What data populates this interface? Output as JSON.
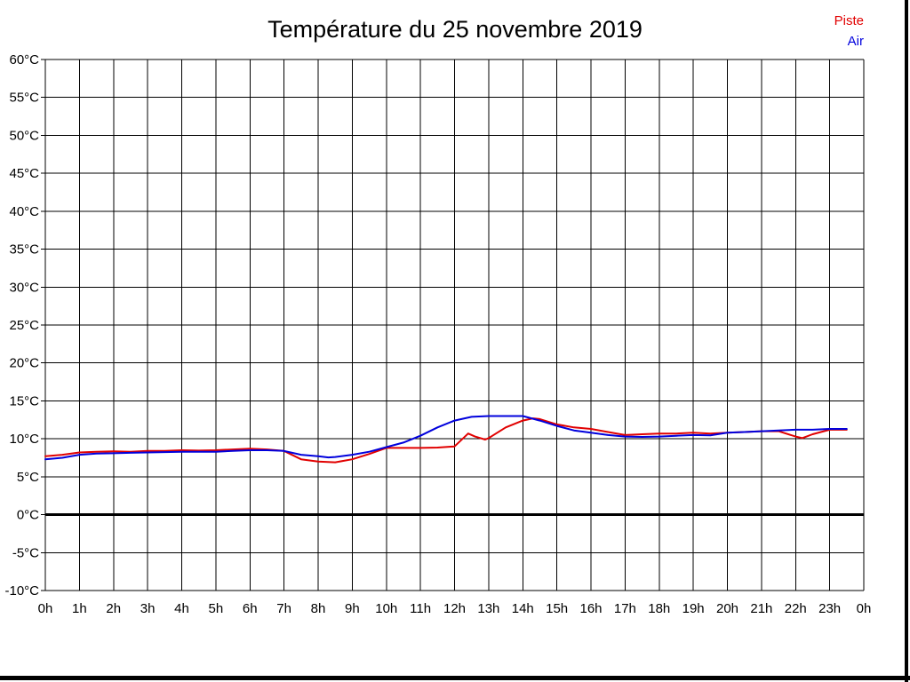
{
  "header": {
    "title": "Température du 25 novembre 2019"
  },
  "legend": {
    "items": [
      {
        "label": "Piste",
        "color": "#e10000"
      },
      {
        "label": "Air",
        "color": "#0000dd"
      }
    ]
  },
  "frame": {
    "border_color": "#000000"
  },
  "chart_data": {
    "type": "line",
    "title": "Température du 25 novembre 2019",
    "xlabel": "",
    "ylabel": "",
    "xlim": [
      0,
      24
    ],
    "ylim": [
      -10,
      60
    ],
    "grid": true,
    "grid_color": "#000000",
    "zero_line_bold": true,
    "legend_position": "top-right",
    "x_ticks": [
      [
        0,
        "0h"
      ],
      [
        1,
        "1h"
      ],
      [
        2,
        "2h"
      ],
      [
        3,
        "3h"
      ],
      [
        4,
        "4h"
      ],
      [
        5,
        "5h"
      ],
      [
        6,
        "6h"
      ],
      [
        7,
        "7h"
      ],
      [
        8,
        "8h"
      ],
      [
        9,
        "9h"
      ],
      [
        10,
        "10h"
      ],
      [
        11,
        "11h"
      ],
      [
        12,
        "12h"
      ],
      [
        13,
        "13h"
      ],
      [
        14,
        "14h"
      ],
      [
        15,
        "15h"
      ],
      [
        16,
        "16h"
      ],
      [
        17,
        "17h"
      ],
      [
        18,
        "18h"
      ],
      [
        19,
        "19h"
      ],
      [
        20,
        "20h"
      ],
      [
        21,
        "21h"
      ],
      [
        22,
        "22h"
      ],
      [
        23,
        "23h"
      ],
      [
        24,
        "0h"
      ]
    ],
    "y_ticks": [
      [
        -10,
        "-10°C"
      ],
      [
        -5,
        "-5°C"
      ],
      [
        0,
        "0°C"
      ],
      [
        5,
        "5°C"
      ],
      [
        10,
        "10°C"
      ],
      [
        15,
        "15°C"
      ],
      [
        20,
        "20°C"
      ],
      [
        25,
        "25°C"
      ],
      [
        30,
        "30°C"
      ],
      [
        35,
        "35°C"
      ],
      [
        40,
        "40°C"
      ],
      [
        45,
        "45°C"
      ],
      [
        50,
        "50°C"
      ],
      [
        55,
        "55°C"
      ],
      [
        60,
        "60°C"
      ]
    ],
    "series": [
      {
        "name": "Piste",
        "color": "#e10000",
        "points": [
          [
            0,
            7.7
          ],
          [
            0.5,
            7.9
          ],
          [
            1,
            8.2
          ],
          [
            1.5,
            8.3
          ],
          [
            2,
            8.35
          ],
          [
            2.5,
            8.3
          ],
          [
            3,
            8.4
          ],
          [
            3.5,
            8.4
          ],
          [
            4,
            8.5
          ],
          [
            4.5,
            8.45
          ],
          [
            5,
            8.5
          ],
          [
            5.5,
            8.6
          ],
          [
            6,
            8.7
          ],
          [
            6.5,
            8.6
          ],
          [
            7,
            8.4
          ],
          [
            7.5,
            7.3
          ],
          [
            8,
            7
          ],
          [
            8.5,
            6.9
          ],
          [
            9,
            7.3
          ],
          [
            9.5,
            8
          ],
          [
            10,
            8.8
          ],
          [
            10.5,
            8.8
          ],
          [
            11,
            8.8
          ],
          [
            11.5,
            8.85
          ],
          [
            12,
            9
          ],
          [
            12.4,
            10.7
          ],
          [
            12.6,
            10.3
          ],
          [
            12.9,
            9.9
          ],
          [
            13,
            10.1
          ],
          [
            13.5,
            11.5
          ],
          [
            14,
            12.4
          ],
          [
            14.3,
            12.7
          ],
          [
            14.5,
            12.6
          ],
          [
            15,
            11.9
          ],
          [
            15.5,
            11.5
          ],
          [
            16,
            11.3
          ],
          [
            16.5,
            10.9
          ],
          [
            17,
            10.5
          ],
          [
            17.5,
            10.6
          ],
          [
            18,
            10.7
          ],
          [
            18.5,
            10.7
          ],
          [
            19,
            10.8
          ],
          [
            19.5,
            10.7
          ],
          [
            20,
            10.8
          ],
          [
            20.5,
            10.9
          ],
          [
            21,
            11
          ],
          [
            21.5,
            11
          ],
          [
            22,
            10.3
          ],
          [
            22.2,
            10.1
          ],
          [
            22.5,
            10.6
          ],
          [
            23,
            11.2
          ],
          [
            23.5,
            11.2
          ]
        ]
      },
      {
        "name": "Air",
        "color": "#0000dd",
        "points": [
          [
            0,
            7.3
          ],
          [
            0.5,
            7.5
          ],
          [
            1,
            7.9
          ],
          [
            1.5,
            8.05
          ],
          [
            2,
            8.1
          ],
          [
            2.5,
            8.15
          ],
          [
            3,
            8.2
          ],
          [
            3.5,
            8.25
          ],
          [
            4,
            8.3
          ],
          [
            4.5,
            8.3
          ],
          [
            5,
            8.3
          ],
          [
            5.5,
            8.4
          ],
          [
            6,
            8.5
          ],
          [
            6.5,
            8.5
          ],
          [
            7,
            8.4
          ],
          [
            7.5,
            7.9
          ],
          [
            8,
            7.7
          ],
          [
            8.3,
            7.55
          ],
          [
            8.5,
            7.6
          ],
          [
            9,
            7.9
          ],
          [
            9.5,
            8.3
          ],
          [
            10,
            8.9
          ],
          [
            10.5,
            9.5
          ],
          [
            11,
            10.4
          ],
          [
            11.5,
            11.5
          ],
          [
            12,
            12.4
          ],
          [
            12.5,
            12.9
          ],
          [
            13,
            13
          ],
          [
            13.5,
            13
          ],
          [
            14,
            13
          ],
          [
            14.5,
            12.4
          ],
          [
            15,
            11.7
          ],
          [
            15.5,
            11.1
          ],
          [
            16,
            10.8
          ],
          [
            16.5,
            10.5
          ],
          [
            17,
            10.3
          ],
          [
            17.5,
            10.25
          ],
          [
            18,
            10.3
          ],
          [
            18.5,
            10.4
          ],
          [
            19,
            10.5
          ],
          [
            19.5,
            10.45
          ],
          [
            20,
            10.8
          ],
          [
            20.5,
            10.9
          ],
          [
            21,
            11
          ],
          [
            21.5,
            11.1
          ],
          [
            22,
            11.2
          ],
          [
            22.5,
            11.2
          ],
          [
            23,
            11.3
          ],
          [
            23.5,
            11.3
          ]
        ]
      }
    ]
  }
}
